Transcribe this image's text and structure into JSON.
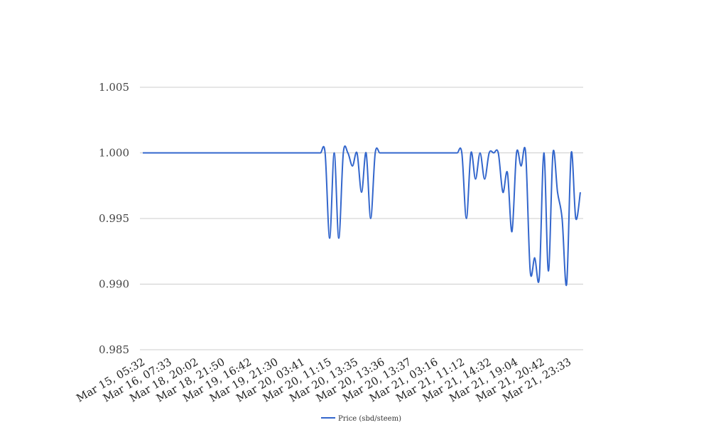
{
  "chart_data": {
    "type": "line",
    "title": "",
    "xlabel": "",
    "ylabel": "",
    "ylim": [
      0.985,
      1.005
    ],
    "yticks": [
      "0.985",
      "0.990",
      "0.995",
      "1.000",
      "1.005"
    ],
    "grid": true,
    "legend_position": "bottom",
    "x_tick_labels": [
      "Mar 15, 05:32",
      "Mar 16, 07:33",
      "Mar 18, 20:02",
      "Mar 18, 21:50",
      "Mar 19, 16:42",
      "Mar 19, 21:30",
      "Mar 20, 03:41",
      "Mar 20, 11:15",
      "Mar 20, 13:35",
      "Mar 20, 13:36",
      "Mar 20, 13:37",
      "Mar 21, 03:16",
      "Mar 21, 11:12",
      "Mar 21, 14:32",
      "Mar 21, 19:04",
      "Mar 21, 20:42",
      "Mar 21, 23:33"
    ],
    "series": [
      {
        "name": "Price (sbd/steem)",
        "color": "#3366cc",
        "values": [
          1.0,
          1.0,
          1.0,
          1.0,
          1.0,
          1.0,
          1.0,
          1.0,
          1.0,
          1.0,
          1.0,
          1.0,
          1.0,
          1.0,
          1.0,
          1.0,
          1.0,
          1.0,
          1.0,
          1.0,
          1.0,
          1.0,
          1.0,
          1.0,
          1.0,
          1.0,
          1.0,
          1.0,
          1.0,
          1.0,
          1.0,
          1.0,
          1.0,
          1.0,
          1.0,
          1.0,
          1.0,
          1.0,
          1.0,
          1.0,
          1.0,
          0.9935,
          1.0,
          0.9935,
          1.0,
          1.0,
          0.999,
          1.0,
          0.997,
          1.0,
          0.995,
          1.0,
          1.0,
          1.0,
          1.0,
          1.0,
          1.0,
          1.0,
          1.0,
          1.0,
          1.0,
          1.0,
          1.0,
          1.0,
          1.0,
          1.0,
          1.0,
          1.0,
          1.0,
          1.0,
          1.0,
          0.995,
          1.0,
          0.998,
          1.0,
          0.998,
          1.0,
          1.0,
          1.0,
          0.997,
          0.9985,
          0.994,
          1.0,
          0.999,
          1.0,
          0.991,
          0.992,
          0.9905,
          1.0,
          0.991,
          1.0,
          0.997,
          0.995,
          0.99,
          1.0,
          0.995,
          0.997
        ]
      }
    ]
  }
}
